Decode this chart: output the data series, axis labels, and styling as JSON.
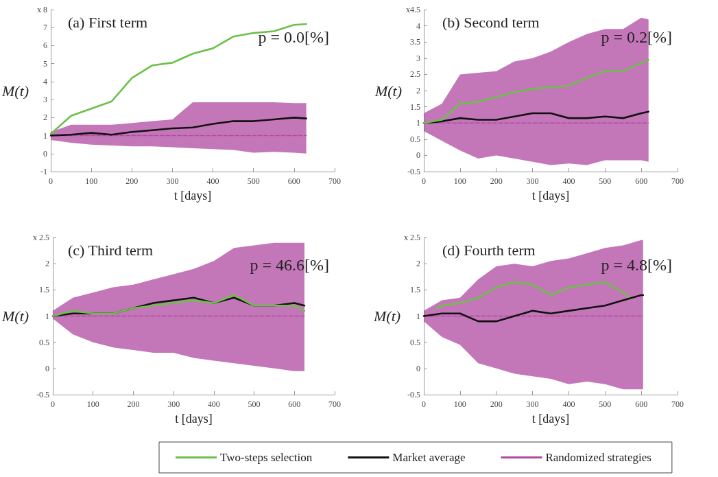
{
  "chart_data": [
    {
      "type": "line",
      "title": "(a) First term",
      "xlabel": "t [days]",
      "ylabel": "M(t)",
      "annotations": [
        "p = 0.0[%]"
      ],
      "xlim": [
        0,
        700
      ],
      "xticks": [
        0,
        100,
        200,
        300,
        400,
        500,
        600,
        700
      ],
      "ylim": [
        -1,
        8
      ],
      "yticks": [
        -1,
        0,
        1,
        2,
        3,
        4,
        5,
        6,
        7,
        {
          "value": 8,
          "label": "x 8"
        }
      ],
      "x": [
        0,
        50,
        100,
        150,
        200,
        250,
        300,
        350,
        400,
        450,
        500,
        550,
        600,
        630
      ],
      "series": [
        {
          "color": "#b04aa0",
          "line_style": "dashed",
          "values": [
            1,
            1,
            1,
            1,
            1,
            1,
            1,
            1,
            1,
            1,
            1,
            1,
            1,
            1
          ],
          "lower": [
            0.75,
            0.6,
            0.5,
            0.45,
            0.4,
            0.4,
            0.35,
            0.3,
            0.25,
            0.2,
            0.05,
            0.1,
            0.05,
            0.0
          ],
          "upper": [
            1.2,
            1.6,
            1.6,
            1.6,
            1.7,
            1.8,
            1.9,
            2.85,
            2.85,
            2.85,
            2.85,
            2.85,
            2.8,
            2.8
          ]
        },
        {
          "color": "#111111",
          "values": [
            1.0,
            1.05,
            1.15,
            1.05,
            1.2,
            1.3,
            1.4,
            1.45,
            1.65,
            1.8,
            1.8,
            1.9,
            2.0,
            1.95
          ]
        },
        {
          "color": "#6cc04a",
          "values": [
            1.1,
            2.1,
            2.5,
            2.9,
            4.2,
            4.9,
            5.05,
            5.55,
            5.85,
            6.5,
            6.7,
            6.8,
            7.15,
            7.2
          ]
        }
      ]
    },
    {
      "type": "line",
      "title": "(b) Second term",
      "xlabel": "t [days]",
      "ylabel": "M(t)",
      "annotations": [
        "p = 0.2[%]"
      ],
      "xlim": [
        0,
        700
      ],
      "xticks": [
        0,
        100,
        200,
        300,
        400,
        500,
        600,
        700
      ],
      "ylim": [
        -0.5,
        4.5
      ],
      "yticks": [
        -0.5,
        0,
        0.5,
        1,
        1.5,
        2,
        2.5,
        3,
        3.5,
        4,
        {
          "value": 4.5,
          "label": "x4.5"
        }
      ],
      "x": [
        0,
        50,
        100,
        150,
        200,
        250,
        300,
        350,
        400,
        450,
        500,
        550,
        600,
        620
      ],
      "series": [
        {
          "color": "#b04aa0",
          "line_style": "dashed",
          "values": [
            1,
            1,
            1,
            1,
            1,
            1,
            1,
            1,
            1,
            1,
            1,
            1,
            1,
            1
          ],
          "lower": [
            0.75,
            0.45,
            0.15,
            -0.1,
            0.0,
            -0.1,
            -0.2,
            -0.3,
            -0.25,
            -0.3,
            -0.15,
            -0.15,
            -0.15,
            -0.2
          ],
          "upper": [
            1.3,
            1.6,
            2.5,
            2.55,
            2.6,
            2.9,
            3.0,
            3.2,
            3.5,
            3.75,
            3.9,
            3.9,
            4.25,
            4.2
          ]
        },
        {
          "color": "#111111",
          "values": [
            1.0,
            1.05,
            1.15,
            1.1,
            1.1,
            1.2,
            1.3,
            1.3,
            1.15,
            1.15,
            1.2,
            1.15,
            1.3,
            1.35
          ]
        },
        {
          "color": "#6cc04a",
          "values": [
            1.0,
            1.1,
            1.6,
            1.65,
            1.8,
            1.95,
            2.05,
            2.1,
            2.15,
            2.4,
            2.6,
            2.6,
            2.85,
            2.95
          ]
        }
      ]
    },
    {
      "type": "line",
      "title": "(c) Third term",
      "xlabel": "t [days]",
      "ylabel": "M(t)",
      "annotations": [
        "p = 46.6[%]"
      ],
      "xlim": [
        0,
        700
      ],
      "xticks": [
        0,
        100,
        200,
        300,
        400,
        500,
        600,
        700
      ],
      "ylim": [
        -0.5,
        2.5
      ],
      "yticks": [
        -0.5,
        0,
        0.5,
        1,
        1.5,
        2,
        {
          "value": 2.5,
          "label": "x 2.5"
        }
      ],
      "x": [
        0,
        50,
        100,
        150,
        200,
        250,
        300,
        350,
        400,
        450,
        500,
        550,
        600,
        625
      ],
      "series": [
        {
          "color": "#b04aa0",
          "line_style": "dashed",
          "values": [
            1,
            1,
            1,
            1,
            1,
            1,
            1,
            1,
            1,
            1,
            1,
            1,
            1,
            1
          ],
          "lower": [
            0.95,
            0.65,
            0.5,
            0.4,
            0.35,
            0.3,
            0.3,
            0.2,
            0.15,
            0.1,
            0.05,
            0.0,
            -0.05,
            -0.05
          ],
          "upper": [
            1.1,
            1.35,
            1.45,
            1.55,
            1.6,
            1.7,
            1.8,
            1.9,
            2.05,
            2.3,
            2.35,
            2.4,
            2.4,
            2.4
          ]
        },
        {
          "color": "#111111",
          "values": [
            1.0,
            1.05,
            1.05,
            1.05,
            1.15,
            1.25,
            1.3,
            1.35,
            1.25,
            1.35,
            1.2,
            1.2,
            1.25,
            1.2
          ]
        },
        {
          "color": "#6cc04a",
          "values": [
            1.0,
            1.1,
            1.05,
            1.05,
            1.15,
            1.2,
            1.25,
            1.3,
            1.25,
            1.4,
            1.2,
            1.2,
            1.2,
            1.1
          ]
        }
      ]
    },
    {
      "type": "line",
      "title": "(d) Fourth term",
      "xlabel": "t [days]",
      "ylabel": "M(t)",
      "annotations": [
        "p = 4.8[%]"
      ],
      "legend": "bottom",
      "xlim": [
        0,
        700
      ],
      "xticks": [
        0,
        100,
        200,
        300,
        400,
        500,
        600,
        700
      ],
      "ylim": [
        -0.5,
        2.5
      ],
      "yticks": [
        -0.5,
        0,
        0.5,
        1,
        1.5,
        2,
        {
          "value": 2.5,
          "label": "x 2.5"
        }
      ],
      "x": [
        0,
        50,
        100,
        150,
        200,
        250,
        300,
        350,
        400,
        450,
        500,
        550,
        600,
        605
      ],
      "series": [
        {
          "name": "Two-steps selection",
          "color": "#6cc04a",
          "x": [
            35,
            50,
            100,
            150,
            200,
            250,
            300,
            350,
            400,
            450,
            500,
            550,
            570
          ],
          "values": [
            1.15,
            1.2,
            1.25,
            1.35,
            1.55,
            1.65,
            1.6,
            1.4,
            1.55,
            1.6,
            1.65,
            1.45,
            1.35
          ]
        },
        {
          "name": "Market average",
          "color": "#111111",
          "values": [
            1.0,
            1.05,
            1.05,
            0.9,
            0.9,
            1.0,
            1.1,
            1.05,
            1.1,
            1.15,
            1.2,
            1.3,
            1.4,
            1.4
          ]
        },
        {
          "name": "Randomized strategies",
          "color": "#b04aa0",
          "line_style": "dashed",
          "values": [
            1,
            1,
            1,
            1,
            1,
            1,
            1,
            1,
            1,
            1,
            1,
            1,
            1,
            1
          ],
          "lower": [
            0.9,
            0.6,
            0.45,
            0.1,
            0.0,
            -0.1,
            -0.15,
            -0.2,
            -0.3,
            -0.25,
            -0.3,
            -0.4,
            -0.4,
            -0.4
          ],
          "upper": [
            1.1,
            1.3,
            1.35,
            1.7,
            1.95,
            2.0,
            1.95,
            2.05,
            2.1,
            2.2,
            2.3,
            2.35,
            2.45,
            2.45
          ]
        }
      ]
    }
  ]
}
